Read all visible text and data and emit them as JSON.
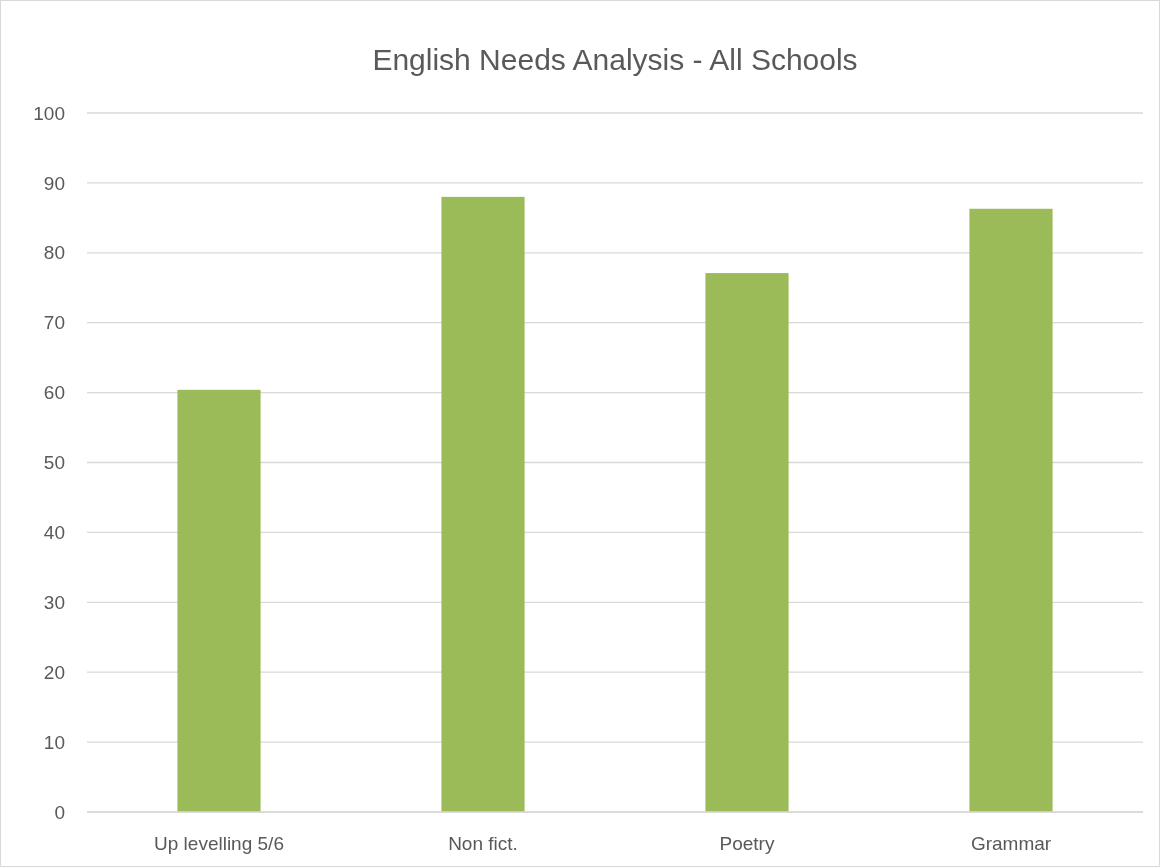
{
  "chart_data": {
    "type": "bar",
    "title": "English Needs Analysis - All Schools",
    "categories": [
      "Up levelling 5/6",
      "Non fict.",
      "Poetry",
      "Grammar"
    ],
    "values": [
      60.4,
      88,
      77.1,
      86.3
    ],
    "color": "#9bbb59",
    "ylim": [
      0,
      100
    ],
    "yticks": [
      0,
      10,
      20,
      30,
      40,
      50,
      60,
      70,
      80,
      90,
      100
    ],
    "grid": true
  }
}
